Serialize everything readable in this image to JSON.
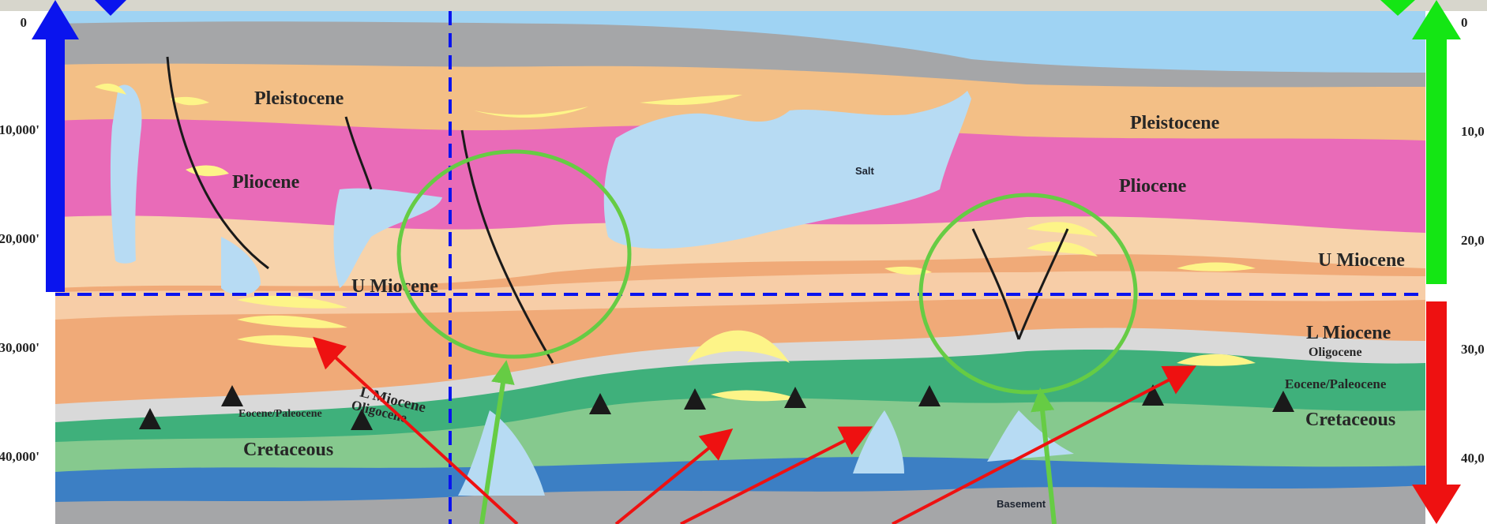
{
  "colors": {
    "sky": "#9fd3f3",
    "seafloor_grey": "#a5a6a8",
    "pleistocene": "#f3bf86",
    "pliocene": "#e96bb8",
    "u_miocene": "#f7d3ab",
    "l_miocene": "#f0aa78",
    "l_miocene_light": "#f7cda7",
    "oligocene": "#d9d9d9",
    "eocene": "#3fb07b",
    "cretaceous": "#86c98e",
    "basement_blue": "#3c7fc4",
    "basement_grey": "#a5a6a8",
    "salt": "#b7dbf3",
    "sand": "#fdf488",
    "fault": "#1a1a1a",
    "blue_arrow": "#0a14ee",
    "green_arrow": "#14e614",
    "red_arrow": "#ee1111",
    "highlight_green": "#66cc44"
  },
  "depth_axis_left": [
    "0",
    "10,000'",
    "20,000'",
    "30,000'",
    "40,000'"
  ],
  "depth_axis_right": [
    "0",
    "10,0",
    "20,0",
    "30,0",
    "40,0"
  ],
  "labels": {
    "pleistocene_left": "Pleistocene",
    "pliocene_left": "Pliocene",
    "u_miocene_left": "U Miocene",
    "l_miocene_left": "L Miocene",
    "oligocene_left": "Oligocene",
    "eocene_left": "Eocene/Paleocene",
    "cretaceous_left": "Cretaceous",
    "pleistocene_right": "Pleistocene",
    "pliocene_right": "Pliocene",
    "u_miocene_right": "U Miocene",
    "l_miocene_right": "L Miocene",
    "oligocene_right": "Oligocene",
    "eocene_right": "Eocene/Paleocene",
    "cretaceous_right": "Cretaceous",
    "basement": "Basement",
    "salt": "Salt",
    "source_symbol": "S"
  }
}
